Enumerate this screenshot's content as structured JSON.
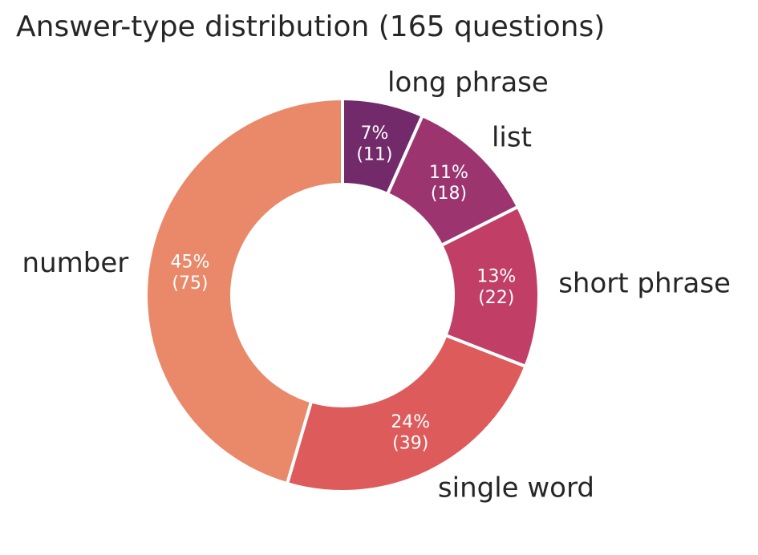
{
  "chart_data": {
    "type": "donut",
    "title": "Answer-type distribution (165 questions)",
    "categories": [
      "long phrase",
      "list",
      "short phrase",
      "single word",
      "number"
    ],
    "values": [
      11,
      18,
      22,
      39,
      75
    ],
    "value_labels": [
      "7%\n(11)",
      "11%\n(18)",
      "13%\n(22)",
      "24%\n(39)",
      "45%\n(75)"
    ],
    "colors": [
      "#722a6a",
      "#9c3470",
      "#c13f66",
      "#de5b5c",
      "#e9896a"
    ]
  }
}
